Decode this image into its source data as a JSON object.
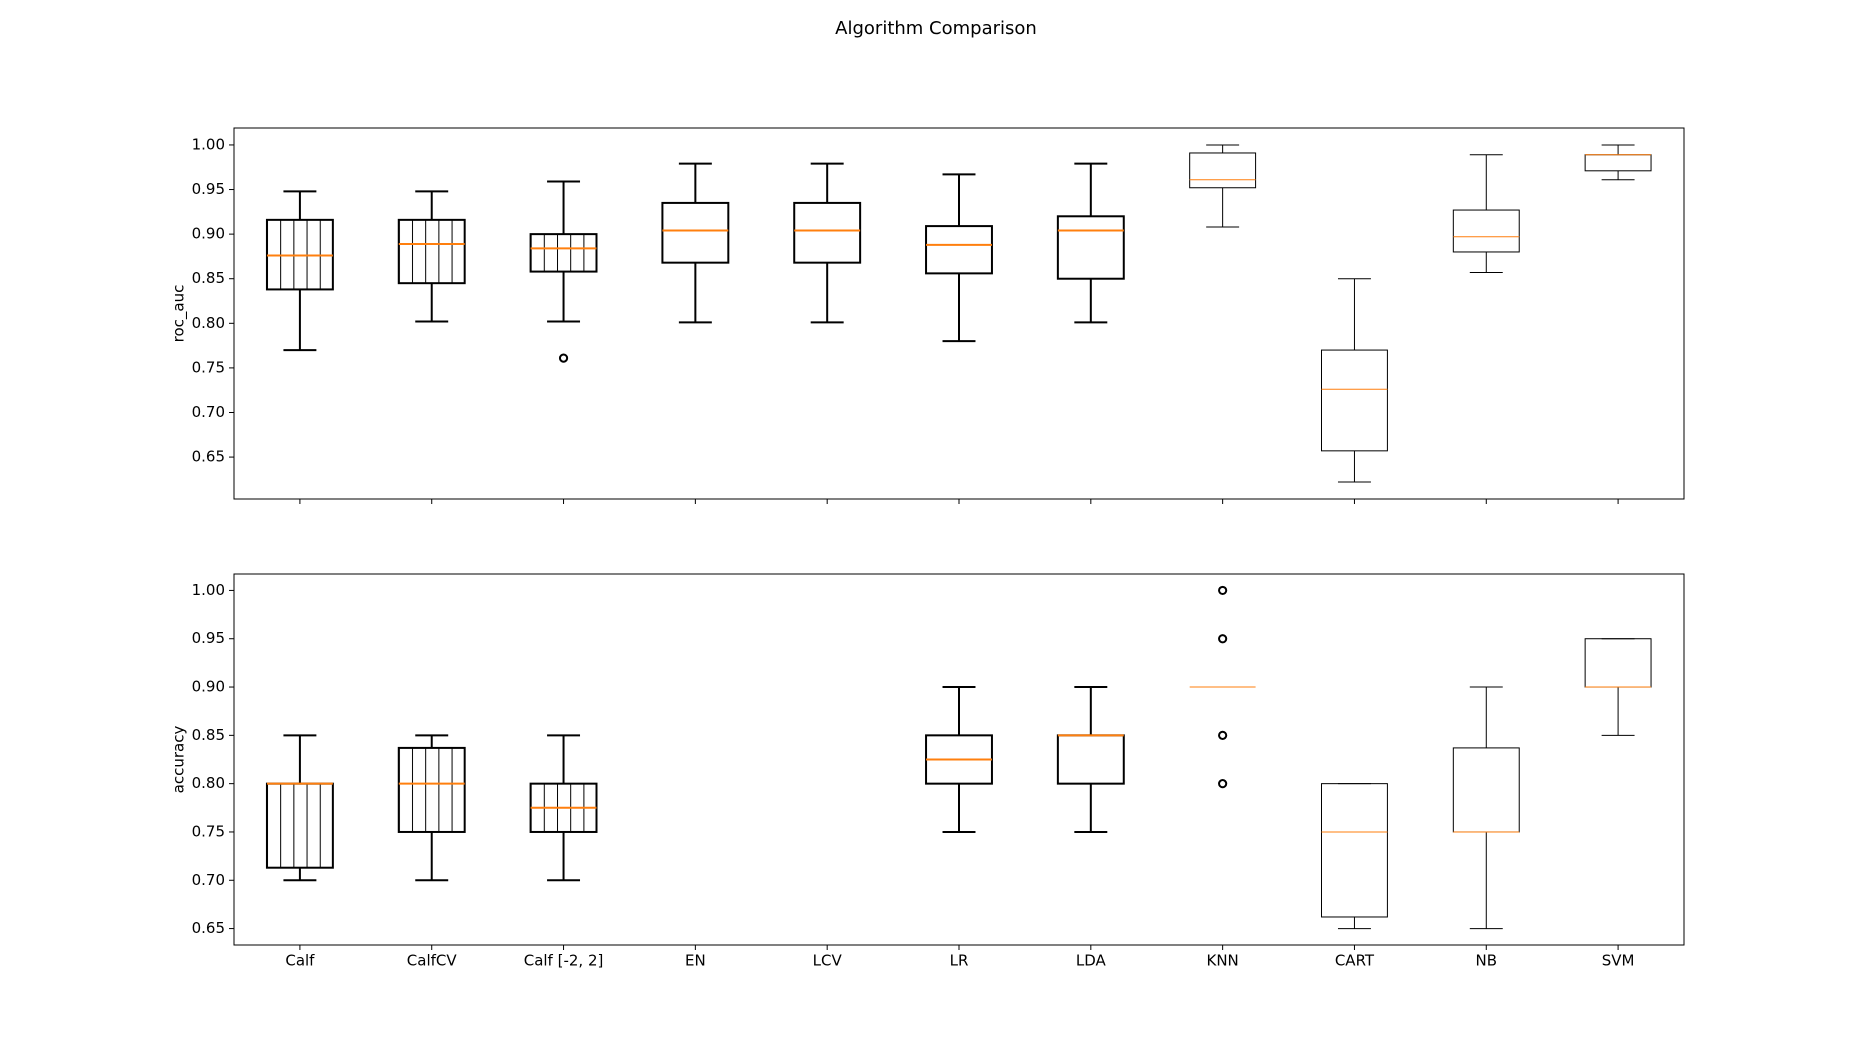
{
  "title": "Algorithm Comparison",
  "chart_data": [
    {
      "type": "box",
      "y_label": "roc_auc",
      "ylim": [
        0.603,
        1.019
      ],
      "yticks": [
        0.65,
        {
          "value": 0.7,
          "label": "0.70"
        },
        0.75,
        {
          "value": 0.8,
          "label": "0.80"
        },
        0.85,
        {
          "value": 0.9,
          "label": "0.90"
        },
        0.95,
        {
          "value": 1,
          "label": "1.00"
        }
      ],
      "median_color": "#ff7f0e",
      "box_color": "#000000",
      "boxes": [
        {
          "whislo": 0.77,
          "q1": 0.838,
          "med": 0.876,
          "q3": 0.916,
          "whishi": 0.948,
          "fliers": [],
          "linewidth": 2,
          "hatch": "|"
        },
        {
          "whislo": 0.802,
          "q1": 0.845,
          "med": 0.889,
          "q3": 0.916,
          "whishi": 0.948,
          "fliers": [],
          "linewidth": 2,
          "hatch": "|"
        },
        {
          "whislo": 0.802,
          "q1": 0.858,
          "med": 0.884,
          "q3": 0.9,
          "whishi": 0.959,
          "fliers": [
            0.761
          ],
          "linewidth": 2,
          "hatch": "|"
        },
        {
          "whislo": 0.801,
          "q1": 0.868,
          "med": 0.904,
          "q3": 0.935,
          "whishi": 0.979,
          "fliers": [],
          "linewidth": 2,
          "hatch": null
        },
        {
          "whislo": 0.801,
          "q1": 0.868,
          "med": 0.904,
          "q3": 0.935,
          "whishi": 0.979,
          "fliers": [],
          "linewidth": 2,
          "hatch": null
        },
        {
          "whislo": 0.78,
          "q1": 0.856,
          "med": 0.888,
          "q3": 0.909,
          "whishi": 0.967,
          "fliers": [],
          "linewidth": 2,
          "hatch": null
        },
        {
          "whislo": 0.801,
          "q1": 0.85,
          "med": 0.904,
          "q3": 0.92,
          "whishi": 0.979,
          "fliers": [],
          "linewidth": 2,
          "hatch": null
        },
        {
          "whislo": 0.908,
          "q1": 0.952,
          "med": 0.961,
          "q3": 0.991,
          "whishi": 1.0,
          "fliers": [],
          "linewidth": 1,
          "hatch": null
        },
        {
          "whislo": 0.622,
          "q1": 0.657,
          "med": 0.726,
          "q3": 0.77,
          "whishi": 0.85,
          "fliers": [],
          "linewidth": 1,
          "hatch": null
        },
        {
          "whislo": 0.857,
          "q1": 0.88,
          "med": 0.897,
          "q3": 0.927,
          "whishi": 0.989,
          "fliers": [],
          "linewidth": 1,
          "hatch": null
        },
        {
          "whislo": 0.961,
          "q1": 0.971,
          "med": 0.989,
          "q3": 0.989,
          "whishi": 1.0,
          "fliers": [],
          "linewidth": 1,
          "hatch": null
        }
      ]
    },
    {
      "type": "box",
      "y_label": "accuracy",
      "ylim": [
        0.633,
        1.017
      ],
      "categories": [
        "Calf",
        "CalfCV",
        "Calf [-2, 2]",
        "EN",
        "LCV",
        "LR",
        "LDA",
        "KNN",
        "CART",
        "NB",
        "SVM"
      ],
      "yticks": [
        0.65,
        {
          "value": 0.7,
          "label": "0.70"
        },
        0.75,
        {
          "value": 0.8,
          "label": "0.80"
        },
        0.85,
        {
          "value": 0.9,
          "label": "0.90"
        },
        0.95,
        {
          "value": 1,
          "label": "1.00"
        }
      ],
      "median_color": "#ff7f0e",
      "box_color": "#000000",
      "boxes": [
        {
          "whislo": 0.7,
          "q1": 0.713,
          "med": 0.8,
          "q3": 0.8,
          "whishi": 0.85,
          "fliers": [],
          "linewidth": 2,
          "hatch": "|"
        },
        {
          "whislo": 0.7,
          "q1": 0.75,
          "med": 0.8,
          "q3": 0.837,
          "whishi": 0.85,
          "fliers": [],
          "linewidth": 2,
          "hatch": "|"
        },
        {
          "whislo": 0.7,
          "q1": 0.75,
          "med": 0.775,
          "q3": 0.8,
          "whishi": 0.85,
          "fliers": [],
          "linewidth": 2,
          "hatch": "|"
        },
        null,
        null,
        {
          "whislo": 0.75,
          "q1": 0.8,
          "med": 0.825,
          "q3": 0.85,
          "whishi": 0.9,
          "fliers": [],
          "linewidth": 2,
          "hatch": null
        },
        {
          "whislo": 0.75,
          "q1": 0.8,
          "med": 0.85,
          "q3": 0.85,
          "whishi": 0.9,
          "fliers": [],
          "linewidth": 2,
          "hatch": null
        },
        {
          "whislo": 0.9,
          "q1": 0.9,
          "med": 0.9,
          "q3": 0.9,
          "whishi": 0.9,
          "fliers": [
            1.0,
            0.95,
            0.85,
            0.8
          ],
          "linewidth": 1,
          "hatch": null
        },
        {
          "whislo": 0.65,
          "q1": 0.662,
          "med": 0.75,
          "q3": 0.8,
          "whishi": 0.8,
          "fliers": [],
          "linewidth": 1,
          "hatch": null
        },
        {
          "whislo": 0.65,
          "q1": 0.75,
          "med": 0.75,
          "q3": 0.837,
          "whishi": 0.9,
          "fliers": [],
          "linewidth": 1,
          "hatch": null
        },
        {
          "whislo": 0.85,
          "q1": 0.9,
          "med": 0.9,
          "q3": 0.95,
          "whishi": 0.95,
          "fliers": [],
          "linewidth": 1,
          "hatch": null
        }
      ]
    }
  ]
}
